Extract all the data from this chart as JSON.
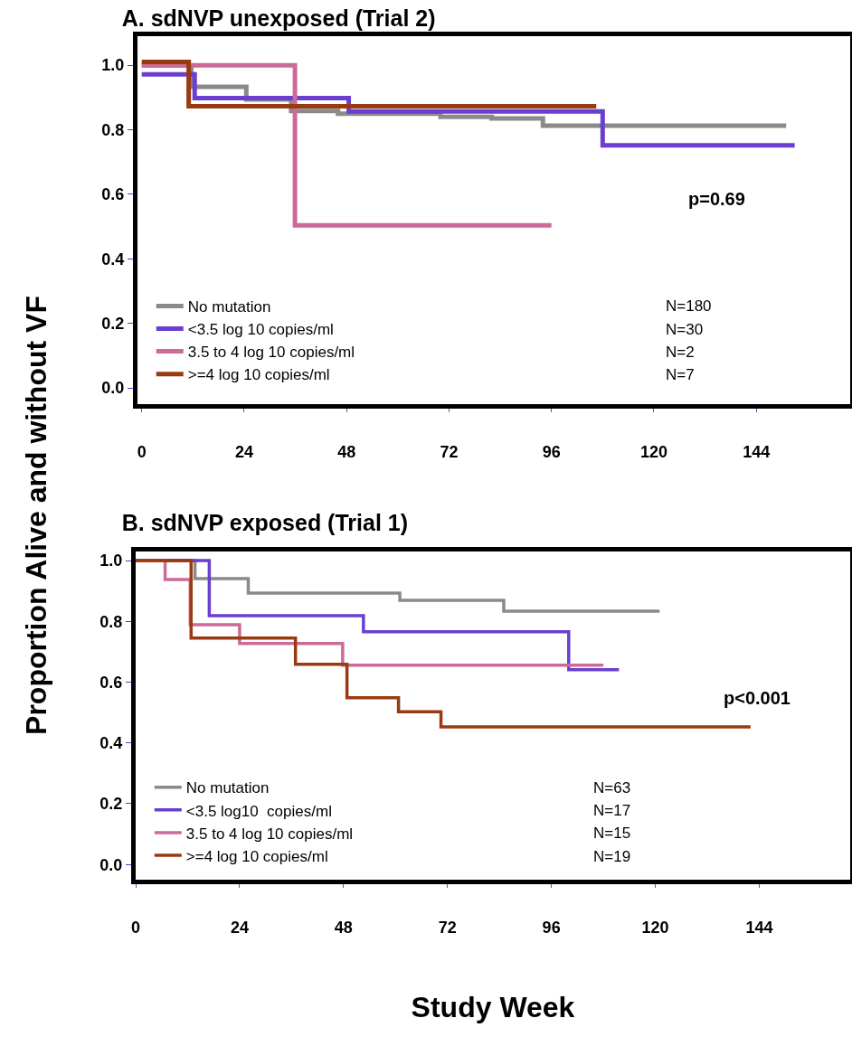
{
  "chart_data": [
    {
      "type": "step",
      "title": "A. sdNVP unexposed (Trial 2)",
      "ylabel": "Proportion Alive and without VF",
      "xlim": [
        -1,
        166
      ],
      "xticks": [
        0,
        24,
        48,
        72,
        96,
        120,
        144
      ],
      "ylim": [
        -0.05,
        1.09
      ],
      "yticks": [
        {
          "value": 0,
          "label": "0.0"
        },
        {
          "value": 0.2,
          "label": "0.2"
        },
        {
          "value": 0.4,
          "label": "0.4"
        },
        {
          "value": 0.6,
          "label": "0.6"
        },
        {
          "value": 0.8,
          "label": "0.8"
        },
        {
          "value": 1,
          "label": "1.0"
        }
      ],
      "grid": false,
      "legend": "bottom left",
      "annotations": [
        "p=0.69",
        "N=180",
        "N=30",
        "N=2",
        "N=7"
      ],
      "series": [
        {
          "name": "No mutation",
          "color": "#8a8a8a",
          "x": [
            0,
            11.6,
            24.5,
            35,
            46,
            70,
            82,
            94,
            151
          ],
          "values": [
            1,
            0.933,
            0.894,
            0.858,
            0.85,
            0.84,
            0.835,
            0.813,
            0.813
          ]
        },
        {
          "name": "<3.5 log 10 copies/ml",
          "color": "#6a3fd0",
          "x": [
            0,
            12.4,
            48.5,
            108,
            153
          ],
          "values": [
            0.972,
            0.898,
            0.857,
            0.752,
            0.752
          ]
        },
        {
          "name": "3.5 to 4 log 10 copies/ml",
          "color": "#cc6a9a",
          "x": [
            0,
            35.9,
            96
          ],
          "values": [
            1,
            0.504,
            0.504
          ]
        },
        {
          "name": ">=4 log 10 copies/ml",
          "color": "#993a10",
          "x": [
            0,
            11,
            106.5
          ],
          "values": [
            1.01,
            0.873,
            0.873
          ]
        }
      ]
    },
    {
      "type": "step",
      "title": "B. sdNVP exposed (Trial 1)",
      "xlabel": "Study Week",
      "xlim": [
        0,
        165
      ],
      "xticks": [
        0,
        24,
        48,
        72,
        96,
        120,
        144
      ],
      "ylim": [
        -0.05,
        1.03
      ],
      "yticks": [
        {
          "value": 0,
          "label": "0.0"
        },
        {
          "value": 0.2,
          "label": "0.2"
        },
        {
          "value": 0.4,
          "label": "0.4"
        },
        {
          "value": 0.6,
          "label": "0.6"
        },
        {
          "value": 0.8,
          "label": "0.8"
        },
        {
          "value": 1,
          "label": "1.0"
        }
      ],
      "grid": false,
      "legend": "bottom left",
      "annotations": [
        "p<0.001",
        "N=63",
        "N=17",
        "N=15",
        "N=19"
      ],
      "series": [
        {
          "name": "No mutation",
          "color": "#8a8a8a",
          "x": [
            0,
            13.7,
            26,
            61,
            85,
            121
          ],
          "values": [
            1,
            0.941,
            0.893,
            0.869,
            0.834,
            0.834
          ]
        },
        {
          "name": "<3.5 log10  copies/ml",
          "color": "#6a3fd0",
          "x": [
            0,
            17,
            52.6,
            100,
            111.6
          ],
          "values": [
            1,
            0.819,
            0.766,
            0.641,
            0.641
          ]
        },
        {
          "name": "3.5 to 4 log 10 copies/ml",
          "color": "#cc6a9a",
          "x": [
            0,
            6.8,
            12.6,
            24,
            47.8,
            108
          ],
          "values": [
            1,
            0.938,
            0.789,
            0.727,
            0.656,
            0.656
          ]
        },
        {
          "name": ">=4 log 10 copies/ml",
          "color": "#993a10",
          "x": [
            0,
            12.8,
            36.9,
            48.8,
            60.7,
            70.5,
            142
          ],
          "values": [
            1,
            0.745,
            0.659,
            0.549,
            0.503,
            0.453,
            0.453
          ]
        }
      ]
    }
  ]
}
